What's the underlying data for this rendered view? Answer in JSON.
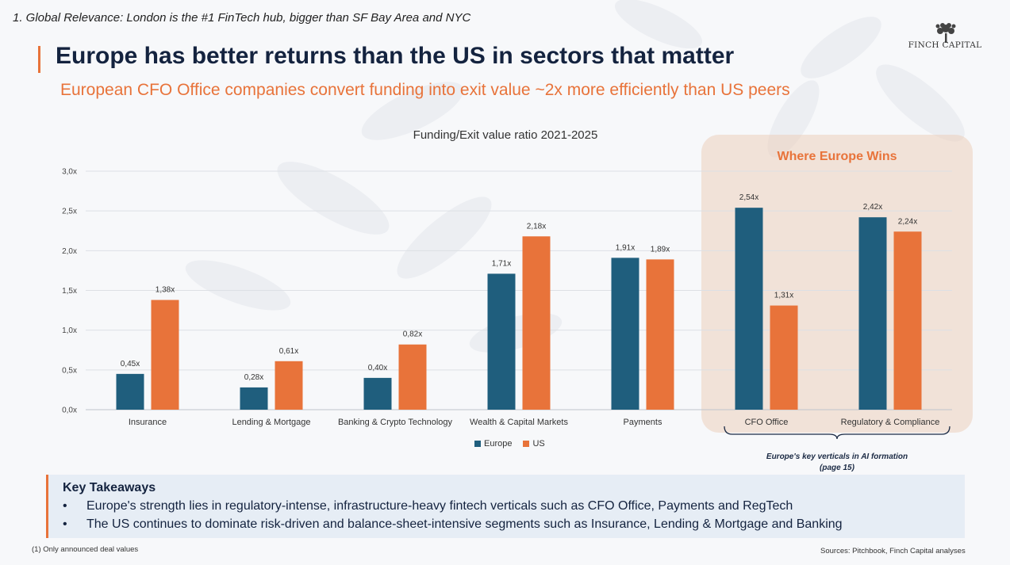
{
  "header": {
    "top_note": "1. Global Relevance: London is the #1 FinTech hub, bigger than SF Bay Area and NYC",
    "title": "Europe has better returns than the US in sectors that matter",
    "subtitle": "European CFO Office companies convert funding into exit value ~2x more efficiently than US peers"
  },
  "logo": {
    "text": "FINCH CAPITAL",
    "icon": "tree-icon"
  },
  "highlight": {
    "title": "Where Europe Wins",
    "note": "Europe's key verticals in AI formation (page 15)"
  },
  "chart_data": {
    "type": "bar",
    "title": "Funding/Exit value ratio 2021-2025",
    "categories": [
      "Insurance",
      "Lending & Mortgage",
      "Banking & Crypto Technology",
      "Wealth & Capital Markets",
      "Payments",
      "CFO Office",
      "Regulatory & Compliance"
    ],
    "series": [
      {
        "name": "Europe",
        "color": "#1f5e7d",
        "values": [
          0.45,
          0.28,
          0.4,
          1.71,
          1.91,
          2.54,
          2.42
        ],
        "labels": [
          "0,45x",
          "0,28x",
          "0,40x",
          "1,71x",
          "1,91x",
          "2,54x",
          "2,42x"
        ]
      },
      {
        "name": "US",
        "color": "#e8733a",
        "values": [
          1.38,
          0.61,
          0.82,
          2.18,
          1.89,
          1.31,
          2.24
        ],
        "labels": [
          "1,38x",
          "0,61x",
          "0,82x",
          "2,18x",
          "1,89x",
          "1,31x",
          "2,24x"
        ]
      }
    ],
    "ylim": [
      0,
      3.0
    ],
    "yticks": [
      0,
      0.5,
      1.0,
      1.5,
      2.0,
      2.5,
      3.0
    ],
    "ytick_labels": [
      "0,0x",
      "0,5x",
      "1,0x",
      "1,5x",
      "2,0x",
      "2,5x",
      "3,0x"
    ],
    "xlabel": "",
    "ylabel": "",
    "grid": true,
    "legend": "bottom-center"
  },
  "legend": {
    "europe": "Europe",
    "us": "US"
  },
  "takeaways": {
    "title": "Key Takeaways",
    "bullet_char": "•",
    "items": [
      "Europe's strength lies in regulatory-intense, infrastructure-heavy fintech verticals such as CFO Office, Payments and RegTech",
      "The US continues to dominate risk-driven and balance-sheet-intensive segments such as Insurance, Lending & Mortgage and Banking"
    ]
  },
  "footer": {
    "note": "(1) Only announced deal values",
    "sources": "Sources: Pitchbook, Finch Capital analyses"
  }
}
